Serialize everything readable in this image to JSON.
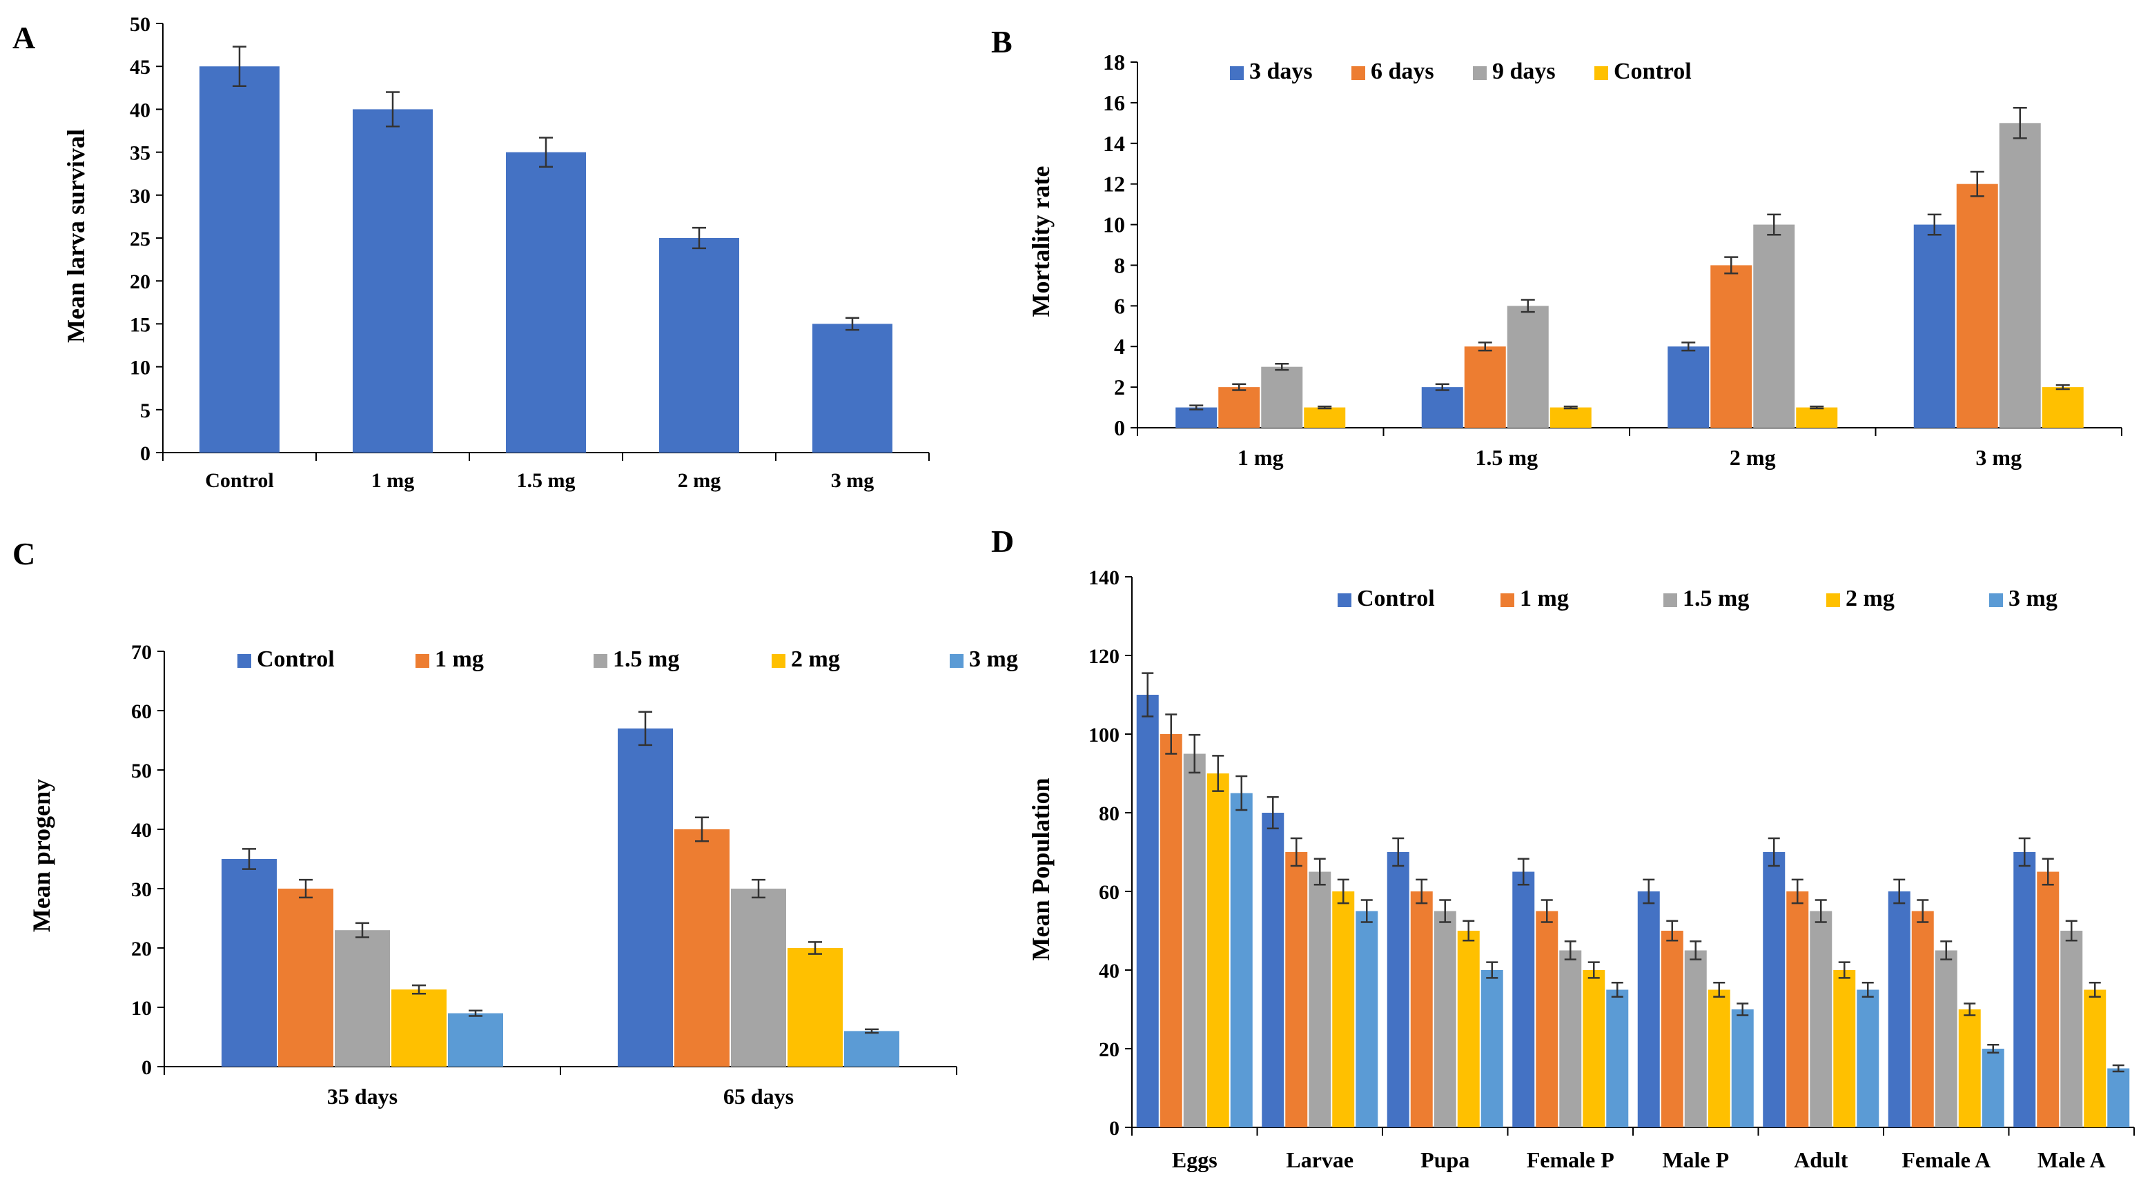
{
  "panels": [
    {
      "letter": "A",
      "chart_data": {
        "type": "bar",
        "title": "",
        "ylabel": "Mean larva survival",
        "xlabel": "",
        "ylim": [
          0,
          50
        ],
        "yticks": [
          0,
          5,
          10,
          15,
          20,
          25,
          30,
          35,
          40,
          45,
          50
        ],
        "categories": [
          "Control",
          "1 mg",
          "1.5 mg",
          "2 mg",
          "3 mg"
        ],
        "legend": false,
        "series": [
          {
            "name": "Mean larva survival",
            "color": "#4472C4",
            "values": [
              45,
              40,
              35,
              25,
              15
            ],
            "errors": [
              2.3,
              2.0,
              1.7,
              1.2,
              0.7
            ]
          }
        ]
      }
    },
    {
      "letter": "B",
      "chart_data": {
        "type": "bar",
        "title": "",
        "ylabel": "Mortality rate",
        "xlabel": "",
        "ylim": [
          0,
          18
        ],
        "yticks": [
          0,
          2,
          4,
          6,
          8,
          10,
          12,
          14,
          16,
          18
        ],
        "categories": [
          "1 mg",
          "1.5 mg",
          "2 mg",
          "3 mg"
        ],
        "legend": true,
        "series": [
          {
            "name": "3 days",
            "color": "#4472C4",
            "values": [
              1,
              2,
              4,
              10
            ],
            "errors": [
              0.1,
              0.15,
              0.2,
              0.5
            ]
          },
          {
            "name": "6 days",
            "color": "#ED7D31",
            "values": [
              2,
              4,
              8,
              12
            ],
            "errors": [
              0.15,
              0.2,
              0.4,
              0.6
            ]
          },
          {
            "name": "9 days",
            "color": "#A5A5A5",
            "values": [
              3,
              6,
              10,
              15
            ],
            "errors": [
              0.15,
              0.3,
              0.5,
              0.75
            ]
          },
          {
            "name": "Control",
            "color": "#FFC000",
            "values": [
              1,
              1,
              1,
              2
            ],
            "errors": [
              0.05,
              0.05,
              0.05,
              0.1
            ]
          }
        ]
      }
    },
    {
      "letter": "C",
      "chart_data": {
        "type": "bar",
        "title": "",
        "ylabel": "Mean progeny",
        "xlabel": "",
        "ylim": [
          0,
          70
        ],
        "yticks": [
          0,
          10,
          20,
          30,
          40,
          50,
          60,
          70
        ],
        "categories": [
          "35 days",
          "65 days"
        ],
        "legend": true,
        "series": [
          {
            "name": "Control",
            "color": "#4472C4",
            "values": [
              35,
              57
            ],
            "errors": [
              1.7,
              2.8
            ]
          },
          {
            "name": "1 mg",
            "color": "#ED7D31",
            "values": [
              30,
              40
            ],
            "errors": [
              1.5,
              2.0
            ]
          },
          {
            "name": "1.5 mg",
            "color": "#A5A5A5",
            "values": [
              23,
              30
            ],
            "errors": [
              1.2,
              1.5
            ]
          },
          {
            "name": "2 mg",
            "color": "#FFC000",
            "values": [
              13,
              20
            ],
            "errors": [
              0.7,
              1.0
            ]
          },
          {
            "name": "3 mg",
            "color": "#5B9BD5",
            "values": [
              9,
              6
            ],
            "errors": [
              0.45,
              0.3
            ]
          }
        ]
      }
    },
    {
      "letter": "D",
      "chart_data": {
        "type": "bar",
        "title": "",
        "ylabel": "Mean Population",
        "xlabel": "",
        "ylim": [
          0,
          140
        ],
        "yticks": [
          0,
          20,
          40,
          60,
          80,
          100,
          120,
          140
        ],
        "categories": [
          "Eggs",
          "Larvae",
          "Pupa",
          "Female P",
          "Male P",
          "Adult",
          "Female A",
          "Male A"
        ],
        "legend": true,
        "series": [
          {
            "name": "Control",
            "color": "#4472C4",
            "values": [
              110,
              80,
              70,
              65,
              60,
              70,
              60,
              70
            ],
            "errors": [
              5.5,
              4,
              3.5,
              3.3,
              3,
              3.5,
              3,
              3.5
            ]
          },
          {
            "name": "1 mg",
            "color": "#ED7D31",
            "values": [
              100,
              70,
              60,
              55,
              50,
              60,
              55,
              65
            ],
            "errors": [
              5,
              3.5,
              3,
              2.8,
              2.5,
              3,
              2.8,
              3.3
            ]
          },
          {
            "name": "1.5 mg",
            "color": "#A5A5A5",
            "values": [
              95,
              65,
              55,
              45,
              45,
              55,
              45,
              50
            ],
            "errors": [
              4.8,
              3.3,
              2.8,
              2.3,
              2.3,
              2.8,
              2.3,
              2.5
            ]
          },
          {
            "name": "2 mg",
            "color": "#FFC000",
            "values": [
              90,
              60,
              50,
              40,
              35,
              40,
              30,
              35
            ],
            "errors": [
              4.5,
              3,
              2.5,
              2,
              1.8,
              2,
              1.5,
              1.8
            ]
          },
          {
            "name": "3 mg",
            "color": "#5B9BD5",
            "values": [
              85,
              55,
              40,
              35,
              30,
              35,
              20,
              15
            ],
            "errors": [
              4.3,
              2.8,
              2,
              1.8,
              1.5,
              1.8,
              1,
              0.8
            ]
          }
        ]
      }
    }
  ]
}
